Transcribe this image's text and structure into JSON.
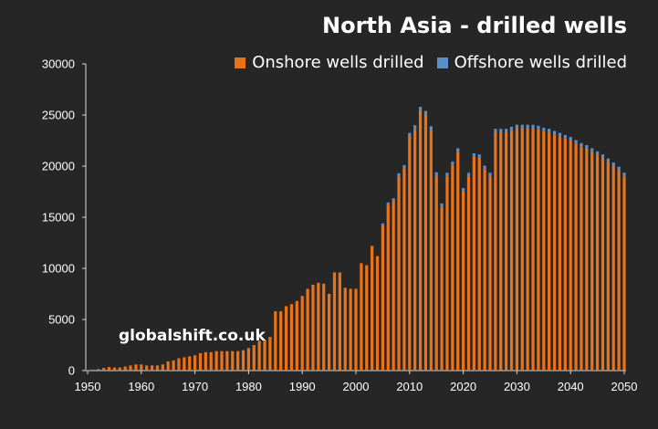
{
  "chart_data": {
    "type": "bar",
    "stacked": true,
    "title": "North Asia - drilled wells",
    "watermark": "globalshift.co.uk",
    "xlabel": "",
    "ylabel": "",
    "xlim": [
      1950,
      2050
    ],
    "ylim": [
      0,
      30000
    ],
    "x_ticks": [
      "1950",
      "1960",
      "1970",
      "1980",
      "1990",
      "2000",
      "2010",
      "2020",
      "2030",
      "2040",
      "2050"
    ],
    "y_ticks": [
      "0",
      "5000",
      "10000",
      "15000",
      "20000",
      "25000",
      "30000"
    ],
    "legend_position": "top-right",
    "grid": false,
    "x": [
      1950,
      1951,
      1952,
      1953,
      1954,
      1955,
      1956,
      1957,
      1958,
      1959,
      1960,
      1961,
      1962,
      1963,
      1964,
      1965,
      1966,
      1967,
      1968,
      1969,
      1970,
      1971,
      1972,
      1973,
      1974,
      1975,
      1976,
      1977,
      1978,
      1979,
      1980,
      1981,
      1982,
      1983,
      1984,
      1985,
      1986,
      1987,
      1988,
      1989,
      1990,
      1991,
      1992,
      1993,
      1994,
      1995,
      1996,
      1997,
      1998,
      1999,
      2000,
      2001,
      2002,
      2003,
      2004,
      2005,
      2006,
      2007,
      2008,
      2009,
      2010,
      2011,
      2012,
      2013,
      2014,
      2015,
      2016,
      2017,
      2018,
      2019,
      2020,
      2021,
      2022,
      2023,
      2024,
      2025,
      2026,
      2027,
      2028,
      2029,
      2030,
      2031,
      2032,
      2033,
      2034,
      2035,
      2036,
      2037,
      2038,
      2039,
      2040,
      2041,
      2042,
      2043,
      2044,
      2045,
      2046,
      2047,
      2048,
      2049,
      2050
    ],
    "series": [
      {
        "name": "Onshore wells drilled",
        "color": "#e8731a",
        "values": [
          50,
          100,
          150,
          250,
          350,
          300,
          300,
          400,
          500,
          600,
          600,
          500,
          500,
          500,
          600,
          900,
          1000,
          1200,
          1300,
          1400,
          1500,
          1700,
          1800,
          1800,
          1900,
          1900,
          1900,
          1900,
          1900,
          2000,
          2200,
          2500,
          2900,
          3000,
          3300,
          5800,
          5800,
          6300,
          6500,
          6800,
          7300,
          8000,
          8400,
          8600,
          8500,
          7500,
          9600,
          9600,
          8100,
          8000,
          8000,
          10500,
          10300,
          12200,
          11200,
          14200,
          16200,
          16600,
          19000,
          19800,
          22900,
          23600,
          25400,
          25000,
          23500,
          19000,
          16000,
          19000,
          20100,
          21400,
          17500,
          19000,
          20900,
          20800,
          19700,
          19000,
          23300,
          23300,
          23300,
          23500,
          23700,
          23700,
          23700,
          23700,
          23600,
          23400,
          23300,
          23100,
          22900,
          22700,
          22500,
          22200,
          21900,
          21700,
          21400,
          21100,
          20800,
          20400,
          20000,
          19600,
          19000
        ]
      },
      {
        "name": "Offshore wells drilled",
        "color": "#5b8fc9",
        "values": [
          0,
          0,
          0,
          0,
          0,
          0,
          0,
          0,
          0,
          0,
          0,
          0,
          0,
          0,
          0,
          0,
          0,
          0,
          0,
          0,
          0,
          0,
          0,
          0,
          0,
          0,
          0,
          0,
          0,
          0,
          0,
          0,
          0,
          0,
          0,
          0,
          0,
          0,
          0,
          0,
          0,
          0,
          0,
          0,
          0,
          0,
          0,
          0,
          0,
          0,
          0,
          0,
          0,
          0,
          0,
          200,
          250,
          250,
          300,
          300,
          350,
          400,
          400,
          400,
          400,
          400,
          350,
          350,
          350,
          350,
          350,
          350,
          350,
          350,
          350,
          350,
          350,
          350,
          350,
          350,
          350,
          350,
          350,
          350,
          350,
          350,
          350,
          350,
          350,
          350,
          350,
          350,
          350,
          350,
          350,
          350,
          350,
          350,
          350,
          350,
          350
        ]
      }
    ]
  }
}
